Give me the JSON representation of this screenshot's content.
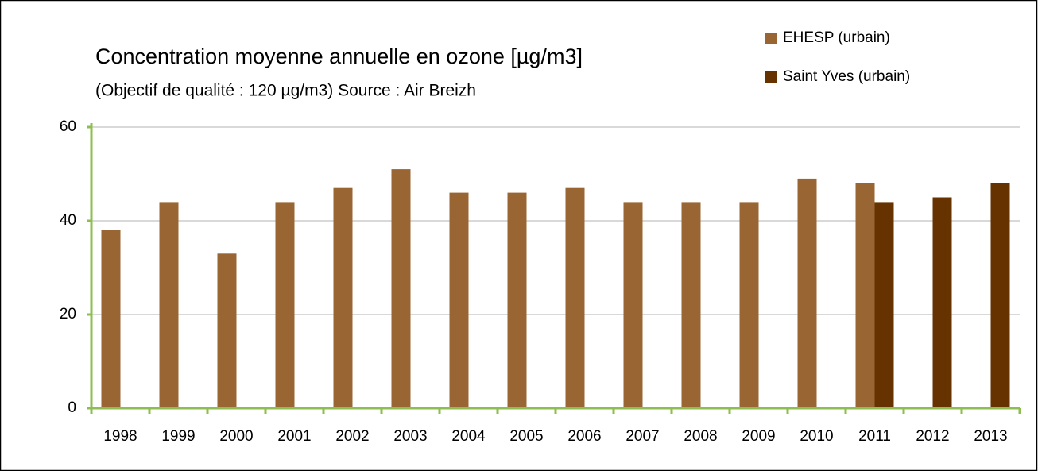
{
  "chart_data": {
    "type": "bar",
    "title": "Concentration moyenne annuelle en ozone [µg/m3]",
    "subtitle": "(Objectif de qualité : 120 µg/m3) Source : Air Breizh",
    "categories": [
      "1998",
      "1999",
      "2000",
      "2001",
      "2002",
      "2003",
      "2004",
      "2005",
      "2006",
      "2007",
      "2008",
      "2009",
      "2010",
      "2011",
      "2012",
      "2013"
    ],
    "series": [
      {
        "name": "EHESP (urbain)",
        "color": "#996633",
        "values": [
          38,
          44,
          33,
          44,
          47,
          51,
          46,
          46,
          47,
          44,
          44,
          44,
          49,
          48,
          null,
          null
        ]
      },
      {
        "name": "Saint Yves (urbain)",
        "color": "#663300",
        "values": [
          null,
          null,
          null,
          null,
          null,
          null,
          null,
          null,
          null,
          null,
          null,
          null,
          null,
          44,
          45,
          48
        ]
      }
    ],
    "ylim": [
      0,
      60
    ],
    "yticks": [
      0,
      20,
      40,
      60
    ],
    "grid": true,
    "legend": "top-right"
  }
}
